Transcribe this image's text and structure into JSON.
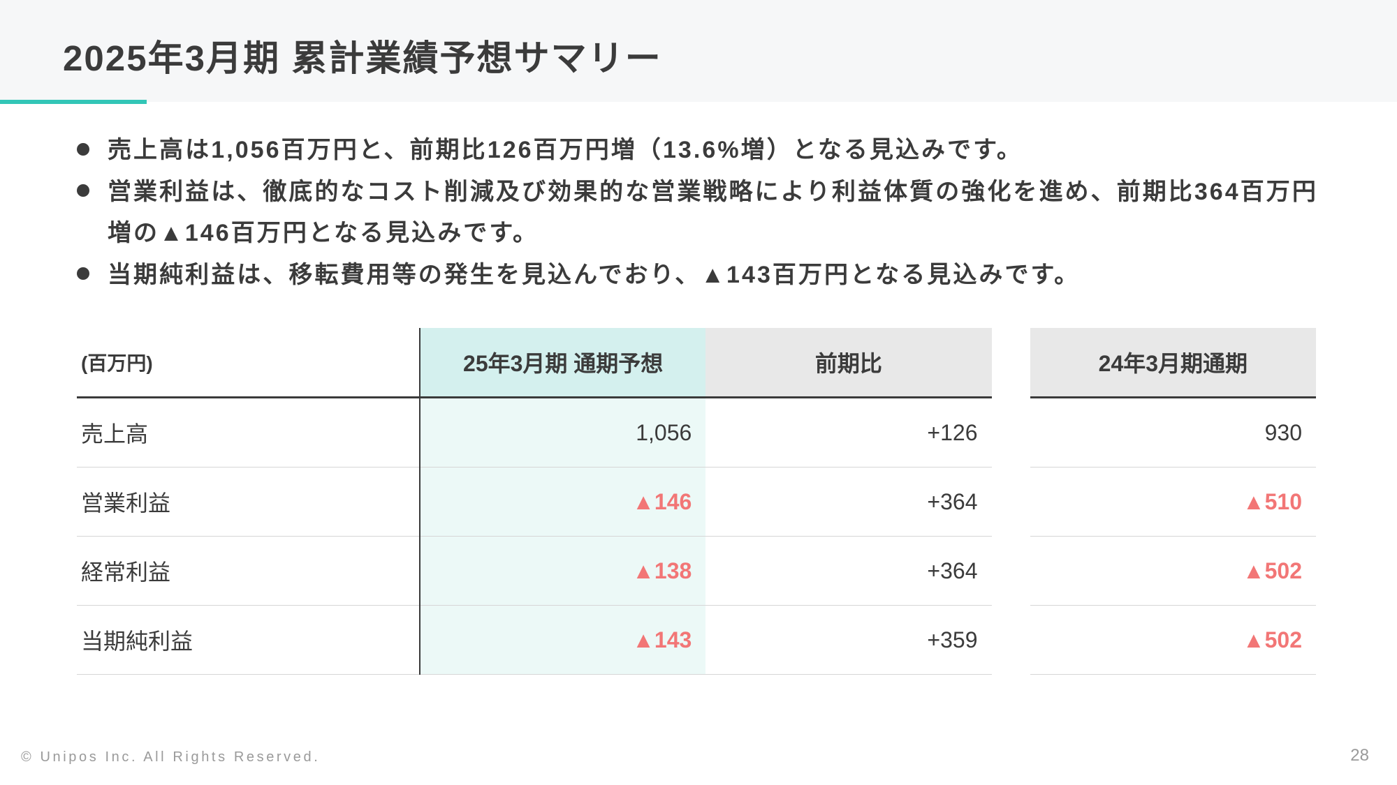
{
  "title": "2025年3月期 累計業績予想サマリー",
  "bullets": [
    "売上高は1,056百万円と、前期比126百万円増（13.6%増）となる見込みです。",
    "営業利益は、徹底的なコスト削減及び効果的な営業戦略により利益体質の強化を進め、前期比364百万円増の▲146百万円となる見込みです。",
    "当期純利益は、移転費用等の発生を見込んでおり、▲143百万円となる見込みです。"
  ],
  "table": {
    "unit_label": "(百万円)",
    "columns": {
      "forecast": "25年3月期 通期予想",
      "yoy": "前期比",
      "previous": "24年3月期通期"
    },
    "header_bg_highlight": "#d4f0ee",
    "header_bg_normal": "#e8e8e8",
    "body_bg_highlight": "#ecf9f7",
    "negative_color": "#f27676",
    "text_color": "#3b3b3b",
    "row_border_color": "#d6d6d6",
    "header_border_color": "#3a3a3a",
    "rows": [
      {
        "label": "売上高",
        "forecast": "1,056",
        "forecast_neg": false,
        "yoy": "+126",
        "previous": "930",
        "previous_neg": false
      },
      {
        "label": "営業利益",
        "forecast": "▲146",
        "forecast_neg": true,
        "yoy": "+364",
        "previous": "▲510",
        "previous_neg": true
      },
      {
        "label": "経常利益",
        "forecast": "▲138",
        "forecast_neg": true,
        "yoy": "+364",
        "previous": "▲502",
        "previous_neg": true
      },
      {
        "label": "当期純利益",
        "forecast": "▲143",
        "forecast_neg": true,
        "yoy": "+359",
        "previous": "▲502",
        "previous_neg": true
      }
    ]
  },
  "footer": "© Unipos Inc. All Rights Reserved.",
  "page_number": "28",
  "accent_color": "#32c6b7"
}
